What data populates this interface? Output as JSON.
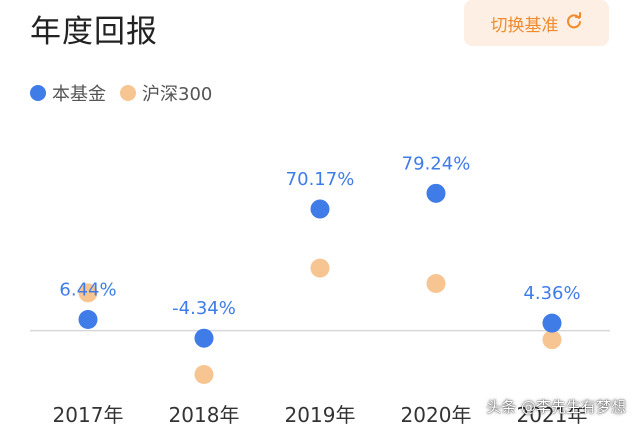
{
  "header": {
    "title": "年度回报",
    "switch_label": "切换基准"
  },
  "icons": {
    "switch": "refresh-icon"
  },
  "colors": {
    "fund": "#3f7ce8",
    "benchmark": "#f7c592",
    "label": "#3f7ce8",
    "switch_text": "#ef8b2d",
    "switch_bg": "#fdefe3"
  },
  "watermark": "头条 @李先生有梦想",
  "chart_data": {
    "type": "scatter",
    "categories": [
      "2017年",
      "2018年",
      "2019年",
      "2020年",
      "2021年"
    ],
    "series": [
      {
        "name": "本基金",
        "values": [
          6.44,
          -4.34,
          70.17,
          79.24,
          4.36
        ],
        "labels": [
          "6.44%",
          "-4.34%",
          "70.17%",
          "79.24%",
          "4.36%"
        ]
      },
      {
        "name": "沪深300",
        "values": [
          21.8,
          -25.3,
          36.1,
          27.2,
          -5.2
        ]
      }
    ],
    "ylim": [
      -40,
      110
    ],
    "baseline": 0,
    "legend": "top-left",
    "grid": false
  }
}
